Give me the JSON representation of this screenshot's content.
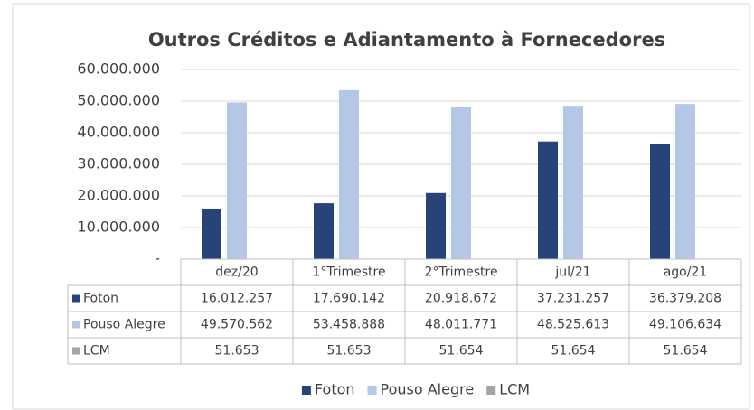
{
  "chart_data": {
    "type": "bar",
    "title": "Outros Créditos e Adiantamento à Fornecedores",
    "categories": [
      "dez/20",
      "1°Trimestre",
      "2°Trimestre",
      "jul/21",
      "ago/21"
    ],
    "series": [
      {
        "name": "Foton",
        "color": "#264478",
        "values": [
          16012257,
          17690142,
          20918672,
          37231257,
          36379208
        ],
        "value_labels": [
          "16.012.257",
          "17.690.142",
          "20.918.672",
          "37.231.257",
          "36.379.208"
        ]
      },
      {
        "name": "Pouso Alegre",
        "color": "#b4c7e7",
        "values": [
          49570562,
          53458888,
          48011771,
          48525613,
          49106634
        ],
        "value_labels": [
          "49.570.562",
          "53.458.888",
          "48.011.771",
          "48.525.613",
          "49.106.634"
        ]
      },
      {
        "name": "LCM",
        "color": "#a5a5a5",
        "values": [
          51653,
          51653,
          51654,
          51654,
          51654
        ],
        "value_labels": [
          "51.653",
          "51.653",
          "51.654",
          "51.654",
          "51.654"
        ]
      }
    ],
    "ylim": [
      0,
      60000000
    ],
    "yticks": [
      {
        "value": 0,
        "label": "-"
      },
      {
        "value": 10000000,
        "label": "10.000.000"
      },
      {
        "value": 20000000,
        "label": "20.000.000"
      },
      {
        "value": 30000000,
        "label": "30.000.000"
      },
      {
        "value": 40000000,
        "label": "40.000.000"
      },
      {
        "value": 50000000,
        "label": "50.000.000"
      },
      {
        "value": 60000000,
        "label": "60.000.000"
      }
    ],
    "grid": true,
    "legend": "bottom"
  }
}
